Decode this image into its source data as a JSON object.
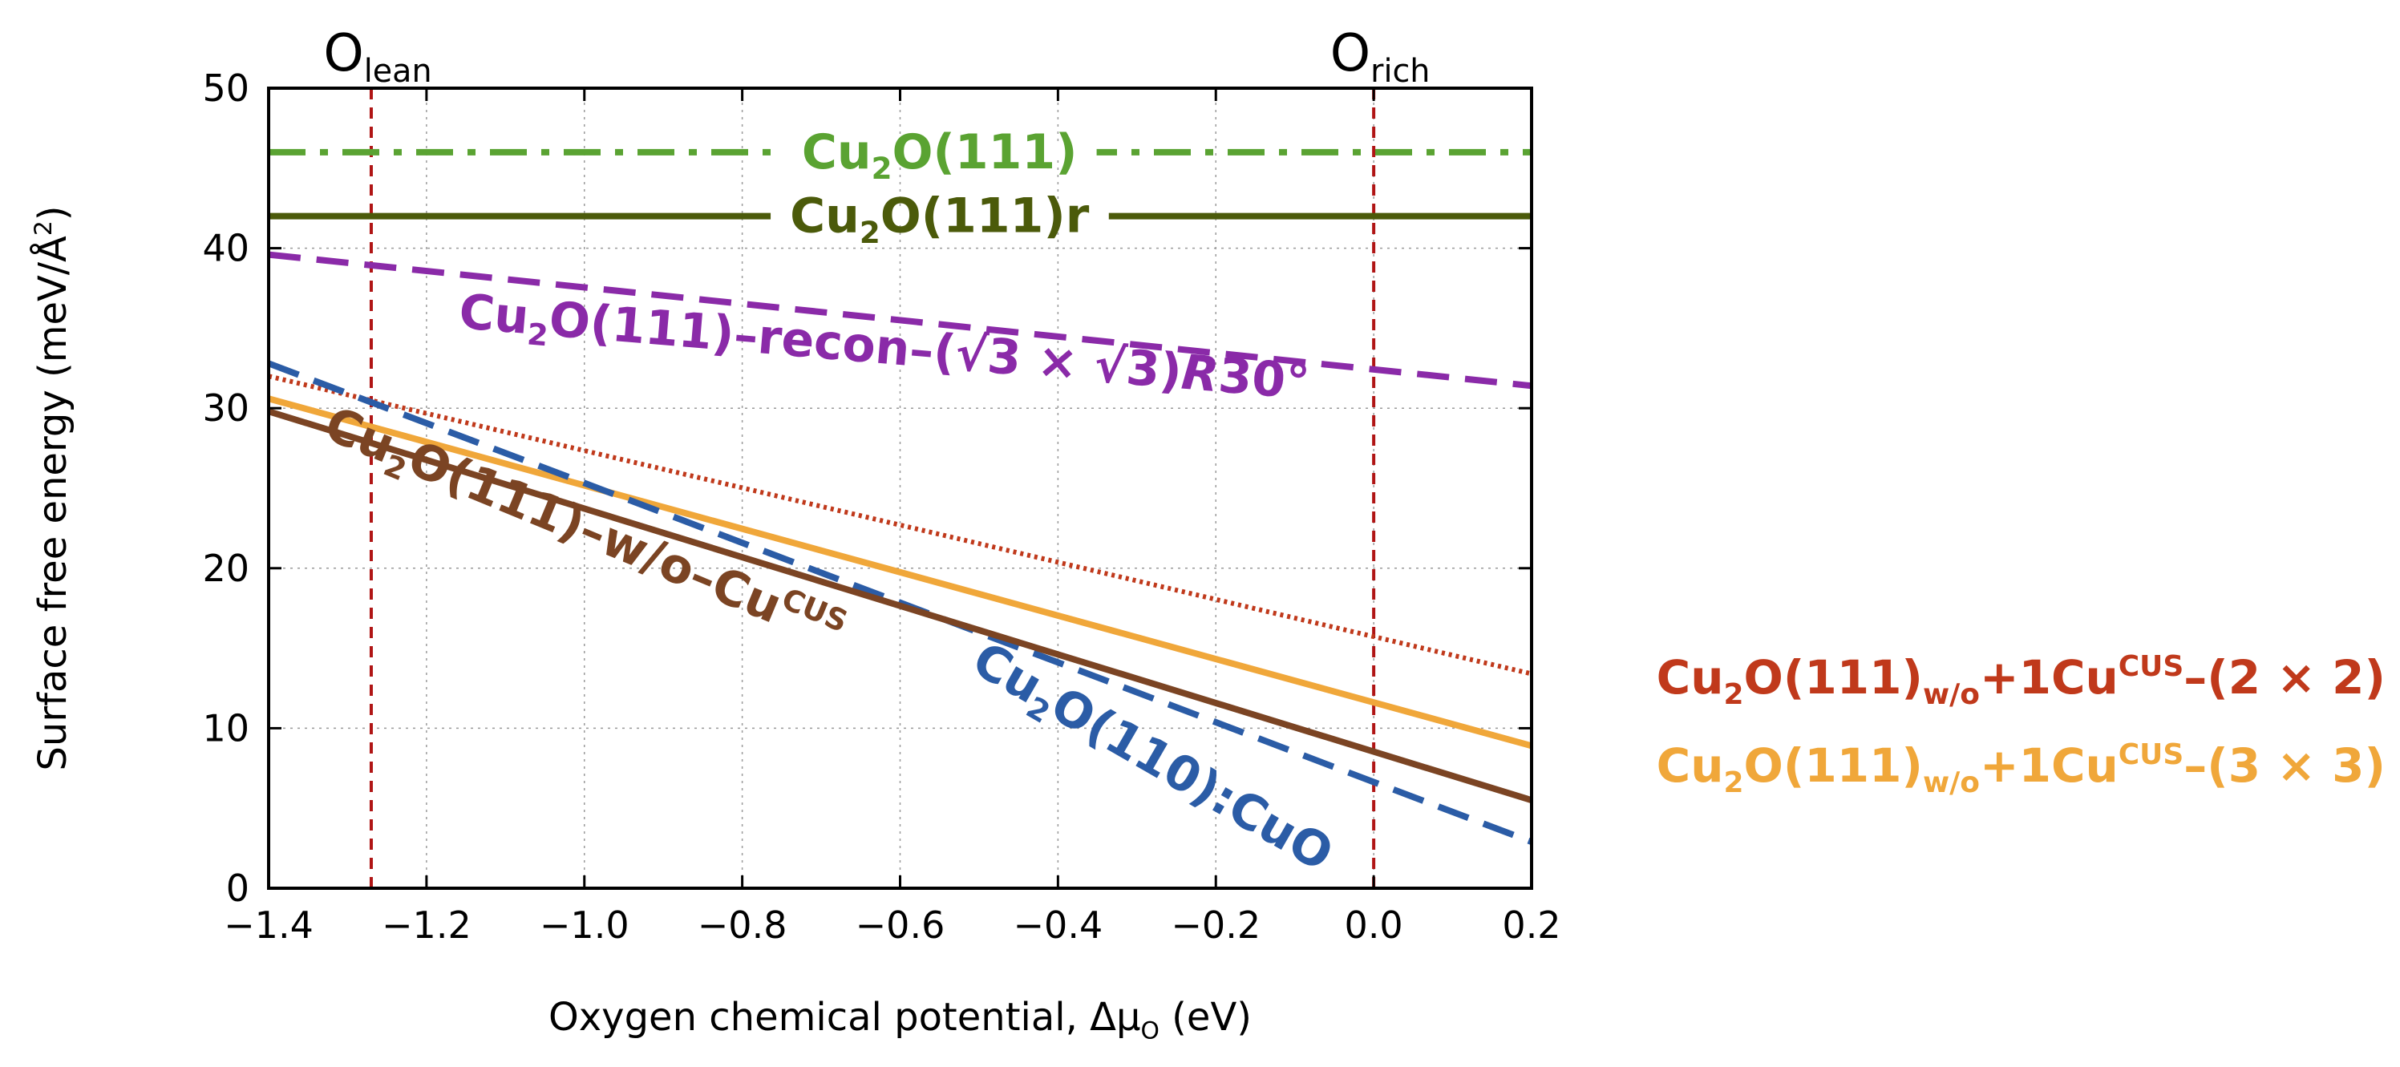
{
  "chart_data": {
    "type": "line",
    "xlabel": "Oxygen chemical potential, Δμ",
    "xlabel_sub": "O",
    "xlabel_unit": " (eV)",
    "ylabel": "Surface free energy (meV/Å",
    "ylabel_sup": "2",
    "ylabel_end": ")",
    "xlim": [
      -1.4,
      0.2
    ],
    "ylim": [
      0,
      50
    ],
    "xticks": [
      -1.4,
      -1.2,
      -1.0,
      -0.8,
      -0.6,
      -0.4,
      -0.2,
      0.0,
      0.2
    ],
    "xtick_labels": [
      "−1.4",
      "−1.2",
      "−1.0",
      "−0.8",
      "−0.6",
      "−0.4",
      "−0.2",
      "0.0",
      "0.2"
    ],
    "yticks": [
      0,
      10,
      20,
      30,
      40,
      50
    ],
    "ytick_labels": [
      "0",
      "10",
      "20",
      "30",
      "40",
      "50"
    ],
    "grid": true,
    "vlines": [
      {
        "x": -1.27,
        "label_main": "O",
        "label_sub": "lean"
      },
      {
        "x": 0.0,
        "label_main": "O",
        "label_sub": "rich"
      }
    ],
    "series": [
      {
        "name": "Cu2O(111)",
        "parts": [
          [
            "Cu"
          ],
          [
            "2",
            "sub"
          ],
          [
            "O(111)"
          ]
        ],
        "x": [
          -1.4,
          0.2
        ],
        "y": [
          46,
          46
        ],
        "color": "#5aa332",
        "style": "dashdot",
        "label_x": -0.55,
        "label_y": 46,
        "label_angle": 0
      },
      {
        "name": "Cu2O(111)r",
        "parts": [
          [
            "Cu"
          ],
          [
            "2",
            "sub"
          ],
          [
            "O(111)r"
          ]
        ],
        "x": [
          -1.4,
          0.2
        ],
        "y": [
          42,
          42
        ],
        "color": "#4b5a0a",
        "style": "solid",
        "label_x": -0.55,
        "label_y": 42,
        "label_angle": 0
      },
      {
        "name": "Cu2O(111)-recon-(√3 × √3)R30°",
        "parts": [
          [
            "Cu"
          ],
          [
            "2",
            "sub"
          ],
          [
            "O(111)–recon–(√3 × √3)"
          ],
          [
            "R",
            "italic"
          ],
          [
            "30°"
          ]
        ],
        "x": [
          -1.4,
          0.2
        ],
        "y": [
          39.6,
          31.4
        ],
        "color": "#8a2aa8",
        "style": "dashed",
        "label_x": -0.62,
        "label_y": 33.8,
        "label_angle": 4.8
      },
      {
        "name": "Cu2O(111)w/o+1CuCUS-(2 × 2)",
        "parts": [],
        "x": [
          -1.4,
          0.2
        ],
        "y": [
          32.0,
          13.4
        ],
        "color": "#c0391b",
        "style": "dotted",
        "label_x": 0,
        "label_y": 0,
        "label_angle": 0
      },
      {
        "name": "Cu2O(111)w/o+1CuCUS-(3 × 3)",
        "parts": [],
        "x": [
          -1.4,
          0.2
        ],
        "y": [
          30.6,
          8.9
        ],
        "color": "#f0a73a",
        "style": "solid",
        "label_x": 0,
        "label_y": 0,
        "label_angle": 0
      },
      {
        "name": "Cu2O(110):CuO",
        "parts": [
          [
            "Cu"
          ],
          [
            "2",
            "sub"
          ],
          [
            "O(110):CuO"
          ]
        ],
        "x": [
          -1.4,
          0.2
        ],
        "y": [
          32.8,
          2.9
        ],
        "color": "#2b5ca6",
        "style": "dashed",
        "label_x": -0.28,
        "label_y": 8.2,
        "label_angle": 30
      },
      {
        "name": "Cu2O(111)-w/o-CuCUS",
        "parts": [
          [
            "Cu"
          ],
          [
            "2",
            "sub"
          ],
          [
            "O(111)–w/o–Cu"
          ],
          [
            "CUS",
            "sup"
          ]
        ],
        "x": [
          -1.4,
          0.2
        ],
        "y": [
          29.8,
          5.5
        ],
        "color": "#7b4423",
        "style": "solid",
        "label_x": -1.0,
        "label_y": 22.5,
        "label_angle": 22.5
      }
    ],
    "legend": [
      {
        "parts": [
          [
            "Cu"
          ],
          [
            "2",
            "sub"
          ],
          [
            "O(111)"
          ],
          [
            "w/o",
            "sub"
          ],
          [
            "+1Cu"
          ],
          [
            "CUS",
            "sup"
          ],
          [
            "–(2 × 2)"
          ]
        ],
        "color": "#c0391b"
      },
      {
        "parts": [
          [
            "Cu"
          ],
          [
            "2",
            "sub"
          ],
          [
            "O(111)"
          ],
          [
            "w/o",
            "sub"
          ],
          [
            "+1Cu"
          ],
          [
            "CUS",
            "sup"
          ],
          [
            "–(3 × 3)"
          ]
        ],
        "color": "#f0a73a"
      }
    ],
    "legend_position": "right"
  }
}
